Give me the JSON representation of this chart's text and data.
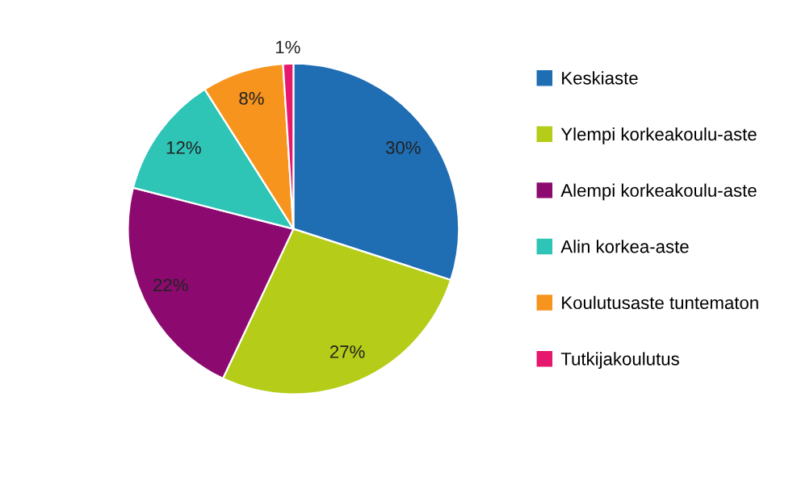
{
  "chart_data": {
    "type": "pie",
    "categories": [
      "Keskiaste",
      "Ylempi korkeakoulu-aste",
      "Alempi korkeakoulu-aste",
      "Alin korkea-aste",
      "Koulutusaste tuntematon",
      "Tutkijakoulutus"
    ],
    "values": [
      30,
      27,
      22,
      12,
      8,
      1
    ],
    "value_labels": [
      "30%",
      "27%",
      "22%",
      "12%",
      "8%",
      "1%"
    ],
    "colors": [
      "#1f6db2",
      "#b5cc18",
      "#8c0a6f",
      "#2ec4b6",
      "#f7941d",
      "#e6186e"
    ],
    "legend": "right"
  }
}
